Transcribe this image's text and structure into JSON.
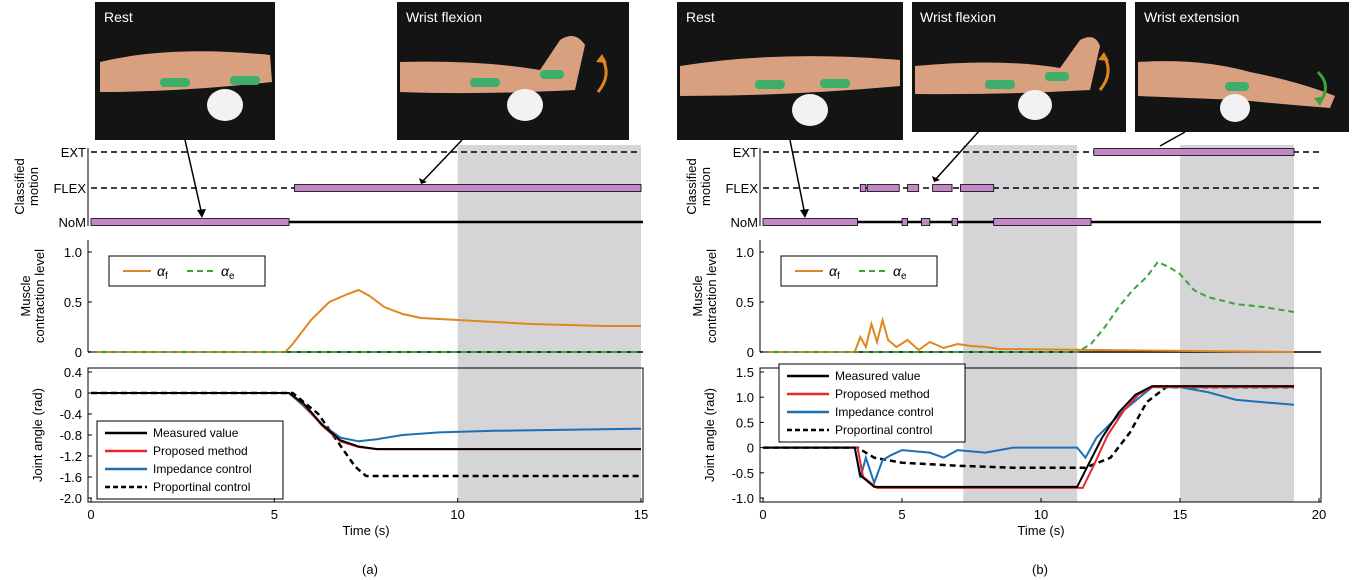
{
  "figure": {
    "panel_labels": [
      "(a)",
      "(b)"
    ],
    "time_axis_label": "Time (s)",
    "colors": {
      "black": "#000000",
      "red": "#e8262c",
      "blue": "#1f6fb5",
      "orange": "#e0861e",
      "green": "#3aa33a",
      "purple": "#c387c8",
      "shade": "#d5d5d7",
      "photo_bg": "#141414",
      "skin": "#d9a07f",
      "sensor": "#3fae6a"
    }
  },
  "panels": {
    "a": {
      "photos": [
        "Rest",
        "Wrist flexion"
      ],
      "motion": {
        "ylabel": [
          "Classified",
          "motion"
        ],
        "levels": [
          "EXT",
          "FLEX",
          "NoM"
        ],
        "segments": [
          {
            "level": "NoM",
            "start": 0,
            "end": 5.4
          },
          {
            "level": "FLEX",
            "start": 5.55,
            "end": 15
          }
        ]
      },
      "contraction": {
        "ylabel": [
          "Muscle",
          "contraction level"
        ],
        "yticks": [
          "1.0",
          "0.5",
          "0"
        ],
        "legend": [
          "α_f",
          "α_e"
        ]
      },
      "joint": {
        "ylabel": "Joint angle (rad)",
        "yticks": [
          "0.4",
          "0",
          "-0.4",
          "-0.8",
          "-1.2",
          "-1.6",
          "-2.0"
        ],
        "legend": [
          "Measured value",
          "Proposed method",
          "Impedance control",
          "Proportinal control"
        ]
      },
      "xticks": [
        "0",
        "5",
        "10",
        "15"
      ]
    },
    "b": {
      "photos": [
        "Rest",
        "Wrist flexion",
        "Wrist extension"
      ],
      "motion": {
        "ylabel": [
          "Classified",
          "motion"
        ],
        "levels": [
          "EXT",
          "FLEX",
          "NoM"
        ],
        "segments": [
          {
            "level": "NoM",
            "start": 0,
            "end": 3.4
          },
          {
            "level": "FLEX",
            "start": 3.5,
            "end": 3.7
          },
          {
            "level": "FLEX",
            "start": 3.75,
            "end": 4.9
          },
          {
            "level": "FLEX",
            "start": 5.2,
            "end": 5.6
          },
          {
            "level": "NoM",
            "start": 5.0,
            "end": 5.2
          },
          {
            "level": "NoM",
            "start": 5.7,
            "end": 6.0
          },
          {
            "level": "FLEX",
            "start": 6.1,
            "end": 6.8
          },
          {
            "level": "NoM",
            "start": 6.8,
            "end": 7.0
          },
          {
            "level": "FLEX",
            "start": 7.1,
            "end": 8.3
          },
          {
            "level": "NoM",
            "start": 8.3,
            "end": 11.8
          },
          {
            "level": "EXT",
            "start": 11.9,
            "end": 19.1
          }
        ]
      },
      "contraction": {
        "ylabel": [
          "Muscle",
          "contraction level"
        ],
        "yticks": [
          "1.0",
          "0.5",
          "0"
        ],
        "legend": [
          "α_f",
          "α_e"
        ]
      },
      "joint": {
        "ylabel": "Joint angle (rad)",
        "yticks": [
          "1.5",
          "1.0",
          "0.5",
          "0",
          "-0.5",
          "-1.0"
        ],
        "legend": [
          "Measured value",
          "Proposed method",
          "Impedance control",
          "Proportinal control"
        ]
      },
      "xticks": [
        "0",
        "5",
        "10",
        "15",
        "20"
      ]
    }
  },
  "chart_data": [
    {
      "type": "line",
      "panel": "a",
      "xlabel": "Time (s)",
      "xlim": [
        0,
        15
      ],
      "shaded_interval": [
        10,
        15
      ],
      "contraction": {
        "ylim": [
          0,
          1
        ],
        "series": [
          {
            "name": "α_f",
            "x": [
              0,
              5.3,
              5.5,
              6.0,
              6.5,
              7.0,
              7.3,
              7.6,
              8.0,
              8.5,
              9.0,
              10,
              11,
              12,
              13,
              14,
              15
            ],
            "y": [
              0,
              0,
              0.08,
              0.32,
              0.5,
              0.58,
              0.62,
              0.56,
              0.45,
              0.38,
              0.34,
              0.32,
              0.3,
              0.28,
              0.27,
              0.26,
              0.26
            ]
          },
          {
            "name": "α_e",
            "x": [
              0,
              15
            ],
            "y": [
              0,
              0
            ]
          }
        ]
      },
      "joint": {
        "ylim": [
          -2.0,
          0.4
        ],
        "series": [
          {
            "name": "Measured value",
            "x": [
              0,
              5.4,
              5.8,
              6.3,
              6.8,
              7.3,
              7.8,
              15
            ],
            "y": [
              0,
              0,
              -0.2,
              -0.6,
              -0.9,
              -1.02,
              -1.07,
              -1.07
            ]
          },
          {
            "name": "Proposed method",
            "x": [
              0,
              5.4,
              5.8,
              6.3,
              6.8,
              7.3,
              7.8,
              15
            ],
            "y": [
              0,
              0,
              -0.22,
              -0.62,
              -0.92,
              -1.03,
              -1.07,
              -1.07
            ]
          },
          {
            "name": "Impedance control",
            "x": [
              0,
              5.4,
              5.8,
              6.3,
              6.8,
              7.3,
              7.8,
              8.5,
              9.5,
              11,
              13,
              15
            ],
            "y": [
              0,
              0,
              -0.25,
              -0.6,
              -0.85,
              -0.92,
              -0.88,
              -0.8,
              -0.75,
              -0.72,
              -0.7,
              -0.68
            ]
          },
          {
            "name": "Proportinal control",
            "x": [
              0,
              5.5,
              6.2,
              6.8,
              7.2,
              7.5,
              15
            ],
            "y": [
              0,
              0,
              -0.4,
              -1.0,
              -1.4,
              -1.58,
              -1.58
            ]
          }
        ]
      }
    },
    {
      "type": "line",
      "panel": "b",
      "xlabel": "Time (s)",
      "xlim": [
        0,
        20
      ],
      "shaded_intervals": [
        [
          7.2,
          11.3
        ],
        [
          15,
          19.1
        ]
      ],
      "contraction": {
        "ylim": [
          0,
          1
        ],
        "series": [
          {
            "name": "α_f",
            "x": [
              0,
              3.3,
              3.5,
              3.7,
              3.9,
              4.1,
              4.3,
              4.5,
              4.8,
              5.2,
              5.6,
              6.0,
              6.5,
              7.0,
              7.5,
              8.0,
              8.5,
              19.1
            ],
            "y": [
              0,
              0,
              0.15,
              0.05,
              0.28,
              0.1,
              0.32,
              0.12,
              0.05,
              0.12,
              0.02,
              0.1,
              0.04,
              0.08,
              0.06,
              0.05,
              0.03,
              0.0
            ]
          },
          {
            "name": "α_e",
            "x": [
              0,
              11.3,
              11.8,
              12.3,
              12.8,
              13.3,
              13.8,
              14.2,
              14.6,
              15.0,
              15.5,
              16.0,
              17.0,
              18.0,
              19.1
            ],
            "y": [
              0,
              0,
              0.08,
              0.25,
              0.45,
              0.62,
              0.75,
              0.9,
              0.85,
              0.78,
              0.62,
              0.55,
              0.48,
              0.45,
              0.4
            ]
          }
        ]
      },
      "joint": {
        "ylim": [
          -1.0,
          1.5
        ],
        "series": [
          {
            "name": "Measured value",
            "x": [
              0,
              3.3,
              3.5,
              4.0,
              11.3,
              11.6,
              12.2,
              12.8,
              13.4,
              14.0,
              19.1
            ],
            "y": [
              0,
              0,
              -0.55,
              -0.78,
              -0.78,
              -0.45,
              0.2,
              0.7,
              1.05,
              1.22,
              1.22
            ]
          },
          {
            "name": "Proposed method",
            "x": [
              0,
              3.4,
              3.6,
              4.1,
              11.5,
              11.9,
              12.4,
              13.0,
              13.5,
              14.0,
              19.1
            ],
            "y": [
              0,
              0,
              -0.58,
              -0.8,
              -0.8,
              -0.35,
              0.25,
              0.75,
              1.05,
              1.2,
              1.2
            ]
          },
          {
            "name": "Impedance control",
            "x": [
              0,
              3.3,
              3.5,
              3.7,
              4.0,
              4.3,
              4.6,
              5.0,
              6.0,
              6.5,
              7.0,
              8.0,
              9.0,
              11.3,
              11.6,
              12.0,
              13.0,
              14.0,
              15.0,
              16.0,
              17.0,
              18.0,
              19.1
            ],
            "y": [
              0,
              0,
              -0.6,
              -0.2,
              -0.7,
              -0.25,
              -0.15,
              -0.05,
              -0.1,
              -0.2,
              -0.05,
              -0.1,
              0.0,
              0.0,
              -0.2,
              0.2,
              0.75,
              1.2,
              1.2,
              1.1,
              0.95,
              0.9,
              0.85
            ]
          },
          {
            "name": "Proportinal control",
            "x": [
              0,
              3.4,
              4.0,
              5.0,
              6.0,
              7.0,
              9.0,
              11.6,
              12.5,
              13.2,
              13.8,
              14.5,
              19.1
            ],
            "y": [
              0,
              0,
              -0.2,
              -0.3,
              -0.33,
              -0.36,
              -0.4,
              -0.4,
              -0.2,
              0.3,
              0.9,
              1.2,
              1.2
            ]
          }
        ]
      }
    }
  ]
}
